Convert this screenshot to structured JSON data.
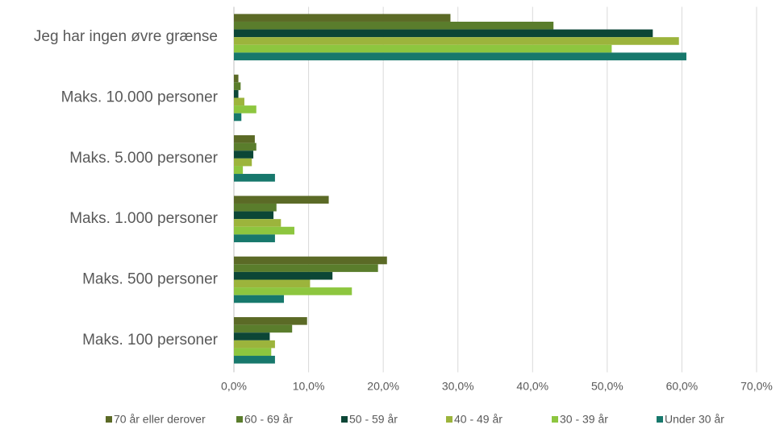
{
  "chart_data": {
    "type": "hbar",
    "categories": [
      "Jeg har ingen øvre grænse",
      "Maks. 10.000 personer",
      "Maks. 5.000 personer",
      "Maks. 1.000 personer",
      "Maks. 500 personer",
      "Maks. 100 personer"
    ],
    "series": [
      {
        "name": "70 år eller derover",
        "color": "#5b6a26",
        "values": [
          29.0,
          0.6,
          2.8,
          12.7,
          20.5,
          9.8
        ]
      },
      {
        "name": "60 - 69 år",
        "color": "#5a7d2c",
        "values": [
          42.8,
          0.9,
          3.0,
          5.7,
          19.3,
          7.8
        ]
      },
      {
        "name": "50 - 59 år",
        "color": "#0c4636",
        "values": [
          56.1,
          0.6,
          2.6,
          5.3,
          13.2,
          4.8
        ]
      },
      {
        "name": "40 - 49 år",
        "color": "#9cb43c",
        "values": [
          59.6,
          1.4,
          2.4,
          6.3,
          10.2,
          5.5
        ]
      },
      {
        "name": "30 - 39 år",
        "color": "#8dc63f",
        "values": [
          50.6,
          3.0,
          1.2,
          8.1,
          15.8,
          5.0
        ]
      },
      {
        "name": "Under 30 år",
        "color": "#17786c",
        "values": [
          60.6,
          1.0,
          5.5,
          5.5,
          6.7,
          5.5
        ]
      }
    ],
    "xlim": [
      0,
      70
    ],
    "xticks": [
      {
        "value": 0,
        "label": "0,0%"
      },
      {
        "value": 10,
        "label": "10,0%"
      },
      {
        "value": 20,
        "label": "20,0%"
      },
      {
        "value": 30,
        "label": "30,0%"
      },
      {
        "value": 40,
        "label": "40,0%"
      },
      {
        "value": 50,
        "label": "50,0%"
      },
      {
        "value": 60,
        "label": "60,0%"
      },
      {
        "value": 70,
        "label": "70,0%"
      }
    ],
    "grid": true
  }
}
